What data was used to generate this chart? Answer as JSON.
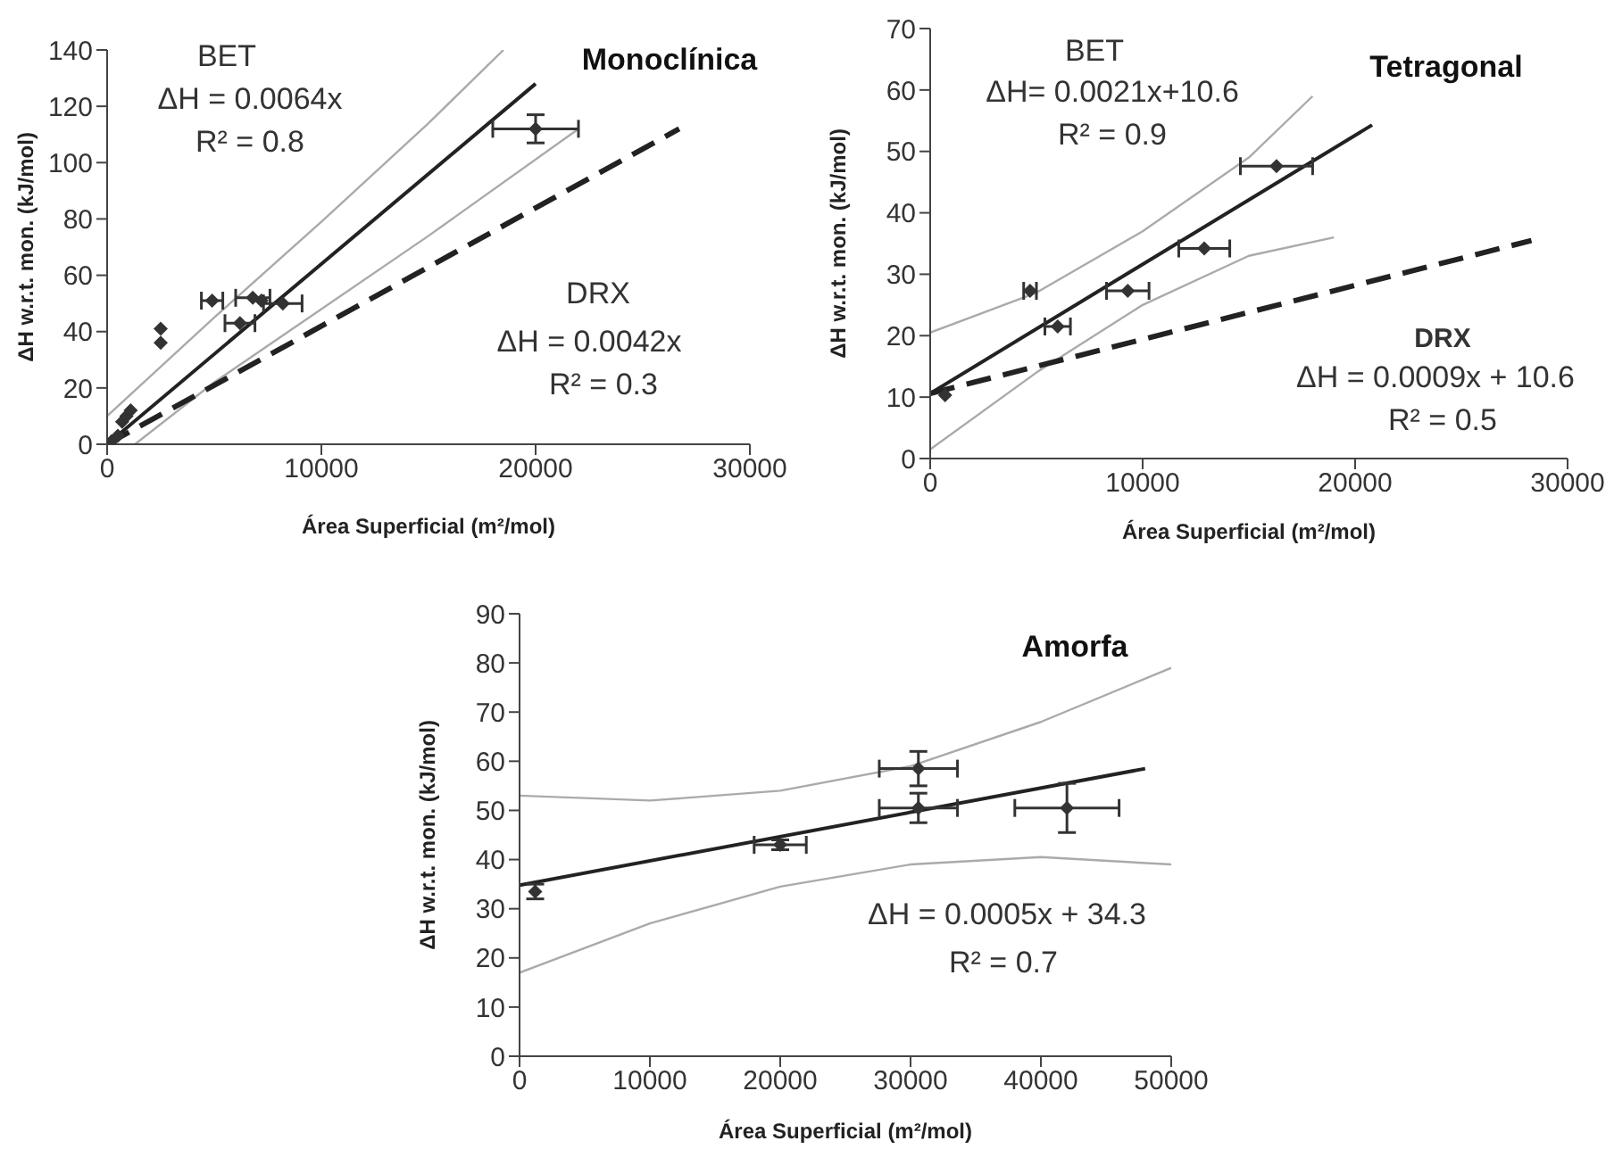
{
  "chart_data": [
    {
      "type": "scatter",
      "title": "Monoclínica",
      "xlabel": "Área Superficial (m²/mol)",
      "ylabel": "ΔH w.r.t. mon. (kJ/mol)",
      "xlim": [
        0,
        30000
      ],
      "xticks": [
        0,
        10000,
        20000,
        30000
      ],
      "ylim": [
        0,
        140
      ],
      "yticks": [
        0,
        20,
        40,
        60,
        80,
        100,
        120,
        140
      ],
      "annotations": [
        "BET",
        "ΔH = 0.0064x",
        "R² = 0.8",
        "DRX",
        "ΔH = 0.0042x",
        "R² = 0.3"
      ],
      "series": [
        {
          "type": "scatter",
          "color": "#333333",
          "marker": "diamond",
          "x": [
            200,
            500,
            700,
            900,
            1100,
            2500,
            2500,
            4900,
            6200,
            6800,
            7200,
            8200,
            20000
          ],
          "values": [
            1,
            3,
            8,
            10,
            12,
            41,
            36,
            51,
            43,
            52,
            51,
            50,
            112
          ],
          "errors": [
            null,
            null,
            null,
            null,
            null,
            null,
            null,
            null,
            null,
            null,
            null,
            null,
            5
          ],
          "xerrors": [
            null,
            null,
            null,
            null,
            null,
            null,
            null,
            500,
            700,
            800,
            null,
            900,
            2000
          ]
        },
        {
          "type": "line",
          "color": "#222222",
          "x": [
            0,
            20000
          ],
          "values": [
            0,
            128
          ]
        },
        {
          "type": "line",
          "color": "#aaaaaa",
          "x": [
            0,
            5000,
            10000,
            15000,
            18500
          ],
          "values": [
            10,
            45,
            79,
            114,
            140
          ]
        },
        {
          "type": "line",
          "color": "#aaaaaa",
          "x": [
            1300,
            5000,
            10000,
            15000,
            22000
          ],
          "values": [
            0,
            22,
            48,
            74,
            112
          ]
        },
        {
          "type": "line",
          "color": "#222222",
          "line_style": "dashed",
          "x": [
            0,
            26700
          ],
          "values": [
            0,
            112
          ]
        }
      ]
    },
    {
      "type": "scatter",
      "title": "Tetragonal",
      "xlabel": "Área Superficial (m²/mol)",
      "ylabel": "ΔH w.r.t. mon. (kJ/mol)",
      "xlim": [
        0,
        30000
      ],
      "xticks": [
        0,
        10000,
        20000,
        30000
      ],
      "ylim": [
        0,
        70
      ],
      "yticks": [
        0,
        10,
        20,
        30,
        40,
        50,
        60,
        70
      ],
      "annotations": [
        "BET",
        "ΔH= 0.0021x+10.6",
        "R² = 0.9",
        "DRX",
        "ΔH = 0.0009x + 10.6",
        "R² = 0.5"
      ],
      "series": [
        {
          "type": "scatter",
          "color": "#333333",
          "marker": "diamond",
          "x": [
            700,
            4700,
            6000,
            9300,
            12900,
            16300
          ],
          "values": [
            10.3,
            27.3,
            21.5,
            27.3,
            34.2,
            47.6
          ],
          "xerrors": [
            null,
            300,
            600,
            1000,
            1200,
            1700
          ]
        },
        {
          "type": "line",
          "color": "#222222",
          "x": [
            0,
            20800
          ],
          "values": [
            10.6,
            54.3
          ]
        },
        {
          "type": "line",
          "color": "#aaaaaa",
          "x": [
            0,
            5000,
            10000,
            15000,
            18000
          ],
          "values": [
            20.5,
            27,
            37,
            49,
            59
          ]
        },
        {
          "type": "line",
          "color": "#aaaaaa",
          "x": [
            0,
            5000,
            10000,
            15000,
            19000
          ],
          "values": [
            1.5,
            14,
            25,
            33,
            36
          ]
        },
        {
          "type": "line",
          "color": "#222222",
          "line_style": "dashed",
          "x": [
            0,
            28300
          ],
          "values": [
            10.6,
            35.5
          ]
        }
      ]
    },
    {
      "type": "scatter",
      "title": "Amorfa",
      "xlabel": "Área Superficial (m²/mol)",
      "ylabel": "ΔH w.r.t. mon. (kJ/mol)",
      "xlim": [
        0,
        50000
      ],
      "xticks": [
        0,
        10000,
        20000,
        30000,
        40000,
        50000
      ],
      "ylim": [
        0,
        90
      ],
      "yticks": [
        0,
        10,
        20,
        30,
        40,
        50,
        60,
        70,
        80,
        90
      ],
      "annotations": [
        "ΔH = 0.0005x + 34.3",
        "R² = 0.7"
      ],
      "series": [
        {
          "type": "scatter",
          "color": "#333333",
          "marker": "diamond",
          "x": [
            1200,
            20000,
            30600,
            30600,
            42000
          ],
          "values": [
            33.5,
            43,
            58.5,
            50.5,
            50.5
          ],
          "errors": [
            1.5,
            1,
            3.5,
            3,
            5
          ],
          "xerrors": [
            null,
            2000,
            3000,
            3000,
            4000
          ]
        },
        {
          "type": "line",
          "color": "#222222",
          "x": [
            0,
            48000
          ],
          "values": [
            34.8,
            58.5
          ]
        },
        {
          "type": "line",
          "color": "#aaaaaa",
          "x": [
            0,
            10000,
            20000,
            30000,
            40000,
            50000
          ],
          "values": [
            53,
            52,
            54,
            59,
            68,
            79
          ]
        },
        {
          "type": "line",
          "color": "#aaaaaa",
          "x": [
            0,
            10000,
            20000,
            30000,
            40000,
            50000
          ],
          "values": [
            17,
            27,
            34.5,
            39,
            40.5,
            39
          ]
        }
      ]
    }
  ]
}
